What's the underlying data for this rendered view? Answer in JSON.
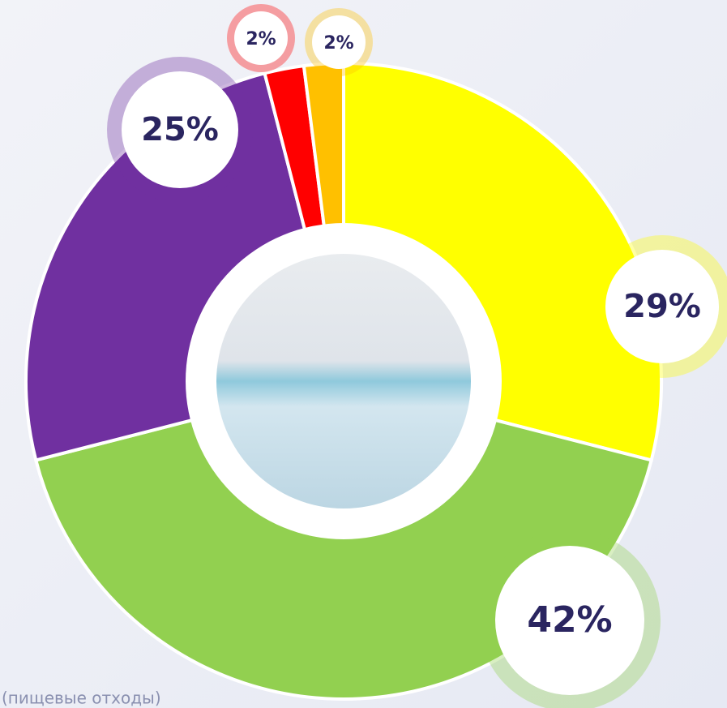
{
  "chart_data": {
    "type": "pie",
    "values": [
      29,
      42,
      25,
      2,
      2
    ],
    "value_labels": [
      "29%",
      "42%",
      "25%",
      "2%",
      "2%"
    ],
    "colors": [
      "#ffff00",
      "#92d050",
      "#7030a0",
      "#ff0000",
      "#ffc000"
    ],
    "note": "(пищевые отходы)"
  }
}
